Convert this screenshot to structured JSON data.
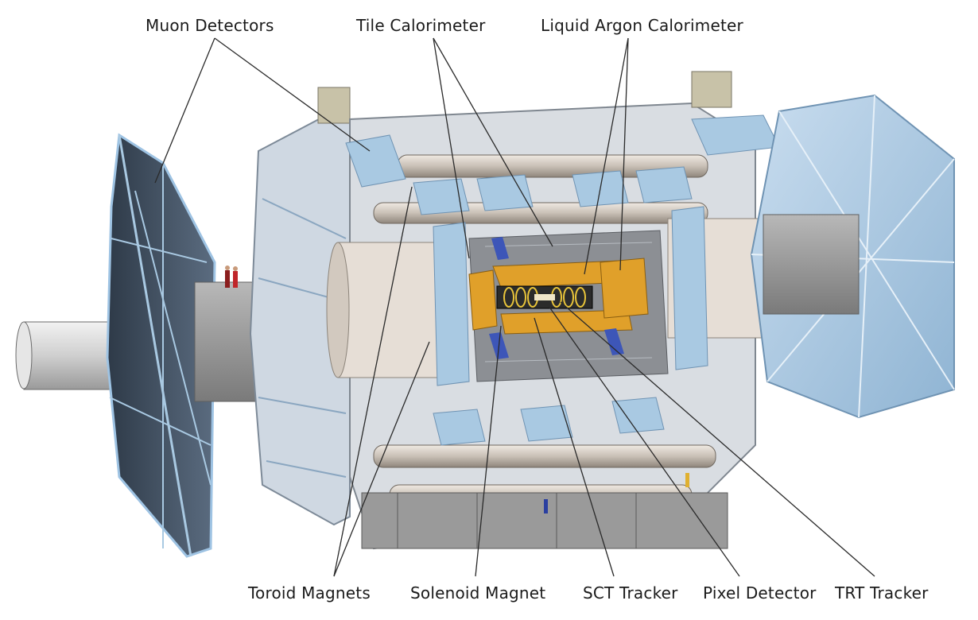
{
  "labels": {
    "muon_detectors": "Muon Detectors",
    "tile_calorimeter": "Tile Calorimeter",
    "liquid_argon_calorimeter": "Liquid Argon Calorimeter",
    "toroid_magnets": "Toroid Magnets",
    "solenoid_magnet": "Solenoid Magnet",
    "sct_tracker": "SCT Tracker",
    "pixel_detector": "Pixel Detector",
    "trt_tracker": "TRT Tracker"
  },
  "colors": {
    "background": "#ffffff",
    "muon_chamber_dark": "#3c4a5c",
    "muon_chamber_light": "#a9c9e2",
    "toroid_coil": "#d6cfc6",
    "calorimeter_orange": "#e0a02a",
    "support_grey": "#8d8d8d",
    "label_text": "#1a1a1a"
  }
}
